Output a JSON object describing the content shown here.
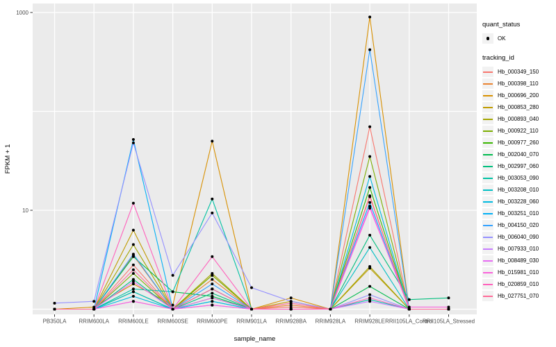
{
  "figure": {
    "background": "#FFFFFF",
    "panel_background": "#EBEBEB",
    "grid_color": "#FFFFFF",
    "tick_color": "#333333",
    "tick_label_color": "#4D4D4D",
    "axis_title_color": "#000000",
    "point_color": "#000000"
  },
  "axes": {
    "x_title": "sample_name",
    "y_title": "FPKM + 1",
    "y_tick_labels": [
      "1000",
      "10"
    ]
  },
  "legend": {
    "quant_status_title": "quant_status",
    "quant_status_items": [
      {
        "label": "OK",
        "marker": "point",
        "color": "#000000"
      }
    ],
    "tracking_id_title": "tracking_id"
  },
  "chart_data": {
    "type": "line",
    "title": "",
    "xlabel": "sample_name",
    "ylabel": "FPKM + 1",
    "y_scale": "log10",
    "ylim": [
      0.9,
      1200
    ],
    "y_major_ticks": [
      10,
      1000
    ],
    "y_gridline_values": [
      1,
      10,
      100,
      1000
    ],
    "grid": true,
    "legend_position": "right",
    "marker": {
      "shape": "filled-point",
      "color": "#000000",
      "legend_label": "OK",
      "legend_title": "quant_status"
    },
    "categories": [
      "PB350LA",
      "RRIM600LA",
      "RRIM600LE",
      "RRIM600SE",
      "RRIM600PE",
      "RRIM901LA",
      "RRIM928BA",
      "RRIM928LA",
      "RRIM928LE",
      "RRII105LA_Control",
      "RRII105LA_Stressed"
    ],
    "series": [
      {
        "name": "Hb_000349_150",
        "color": "#F8766D",
        "values": [
          1,
          1,
          2.8,
          1,
          1.6,
          1,
          1.05,
          1,
          70,
          1,
          1
        ]
      },
      {
        "name": "Hb_000398_110",
        "color": "#EA8331",
        "values": [
          1,
          1,
          3.5,
          1,
          2.0,
          1,
          1.1,
          1,
          14,
          1,
          1
        ]
      },
      {
        "name": "Hb_000696_200",
        "color": "#D89000",
        "values": [
          1,
          1.05,
          1.8,
          1.1,
          50,
          1,
          1.3,
          1,
          900,
          1,
          1
        ]
      },
      {
        "name": "Hb_000853_280",
        "color": "#C09B00",
        "values": [
          1,
          1,
          6.3,
          1,
          2.2,
          1,
          1.2,
          1,
          2.6,
          1,
          1
        ]
      },
      {
        "name": "Hb_000893_040",
        "color": "#A3A500",
        "values": [
          1,
          1,
          4.5,
          1,
          2.3,
          1,
          1,
          1,
          2.7,
          1,
          1
        ]
      },
      {
        "name": "Hb_000922_110",
        "color": "#7CAE00",
        "values": [
          1,
          1,
          2.3,
          1,
          2.2,
          1,
          1,
          1,
          35,
          1,
          1
        ]
      },
      {
        "name": "Hb_000977_260",
        "color": "#39B600",
        "values": [
          1,
          1,
          1.5,
          1,
          1.3,
          1,
          1,
          1,
          17,
          1,
          1
        ]
      },
      {
        "name": "Hb_002040_070",
        "color": "#00BB4E",
        "values": [
          1,
          1,
          3.4,
          1.5,
          1.35,
          1,
          1,
          1,
          1.7,
          1,
          1
        ]
      },
      {
        "name": "Hb_002997_060",
        "color": "#00BF7D",
        "values": [
          1,
          1,
          2.0,
          1,
          1.45,
          1,
          1,
          1,
          5.6,
          1.25,
          1.3
        ]
      },
      {
        "name": "Hb_003053_090",
        "color": "#00C1A3",
        "values": [
          1,
          1,
          1.6,
          1.5,
          13,
          1,
          1,
          1,
          1.25,
          1,
          1
        ]
      },
      {
        "name": "Hb_003208_010",
        "color": "#00BFC4",
        "values": [
          1,
          1,
          1.5,
          1,
          1.2,
          1,
          1,
          1,
          4.2,
          1,
          1
        ]
      },
      {
        "name": "Hb_003228_060",
        "color": "#00BAE0",
        "values": [
          1,
          1,
          1.35,
          1,
          1.2,
          1,
          1,
          1,
          22,
          1,
          1
        ]
      },
      {
        "name": "Hb_003251_010",
        "color": "#00B0F6",
        "values": [
          1,
          1,
          52,
          1,
          1.6,
          1,
          1,
          1,
          12,
          1,
          1
        ]
      },
      {
        "name": "Hb_004150_020",
        "color": "#35A2FF",
        "values": [
          1,
          1,
          3.6,
          1,
          1.8,
          1,
          1,
          1,
          420,
          1,
          1
        ]
      },
      {
        "name": "Hb_006040_090",
        "color": "#9590FF",
        "values": [
          1.15,
          1.2,
          48,
          2.2,
          9.4,
          1.65,
          1.2,
          1,
          1.4,
          1,
          1
        ]
      },
      {
        "name": "Hb_007933_010",
        "color": "#C77CFF",
        "values": [
          1,
          1,
          1.2,
          1,
          1.1,
          1,
          1,
          1,
          1.2,
          1,
          1
        ]
      },
      {
        "name": "Hb_008489_030",
        "color": "#E76BF3",
        "values": [
          1,
          1,
          1.9,
          1,
          1.3,
          1,
          1,
          1,
          11,
          1,
          1
        ]
      },
      {
        "name": "Hb_015981_010",
        "color": "#FA62DB",
        "values": [
          1,
          1,
          1.2,
          1,
          1.1,
          1,
          1,
          1,
          10.5,
          1.05,
          1.05
        ]
      },
      {
        "name": "Hb_020859_010",
        "color": "#FF62BC",
        "values": [
          1,
          1,
          11.8,
          1,
          3.4,
          1,
          1,
          1,
          1.3,
          1,
          1
        ]
      },
      {
        "name": "Hb_027751_070",
        "color": "#FF6A98",
        "values": [
          1,
          1,
          2.5,
          1,
          1.6,
          1,
          1.15,
          1,
          13.7,
          1,
          1
        ]
      }
    ]
  }
}
